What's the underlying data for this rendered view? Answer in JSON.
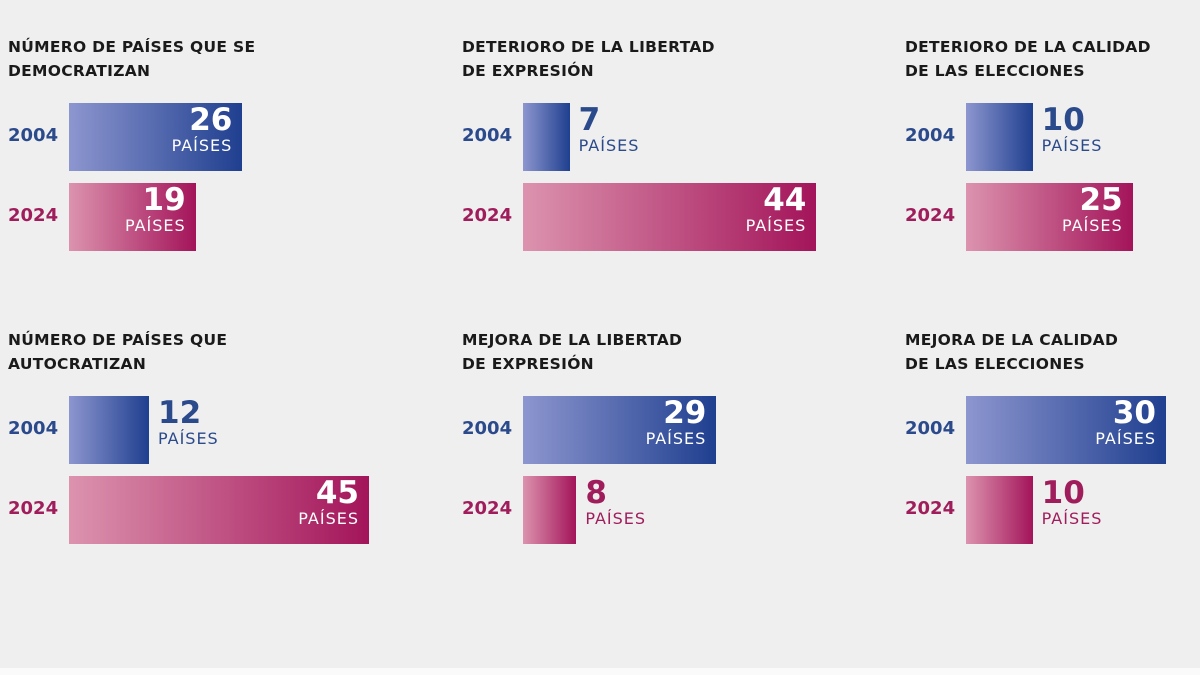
{
  "chart_data": {
    "type": "bar",
    "unit_label": "PAÍSES",
    "colors": {
      "2004": {
        "start": "#8d96cf",
        "end": "#1f3f8f",
        "label": "#2b4a8b"
      },
      "2024": {
        "start": "#dc93ae",
        "end": "#a3145a",
        "label": "#a01d5c"
      },
      "background": "#efefef"
    },
    "panels": [
      {
        "title": "NÚMERO DE PAÍSES QUE SE\nDEMOCRATIZAN",
        "categories": [
          "2004",
          "2024"
        ],
        "values": [
          26,
          19
        ]
      },
      {
        "title": "DETERIORO DE LA LIBERTAD\nDE EXPRESIÓN",
        "categories": [
          "2004",
          "2024"
        ],
        "values": [
          7,
          44
        ]
      },
      {
        "title": "DETERIORO DE LA CALIDAD\nDE LAS ELECCIONES",
        "categories": [
          "2004",
          "2024"
        ],
        "values": [
          10,
          25
        ]
      },
      {
        "title": "NÚMERO DE PAÍSES QUE\nAUTOCRATIZAN",
        "categories": [
          "2004",
          "2024"
        ],
        "values": [
          12,
          45
        ]
      },
      {
        "title": "MEJORA DE LA LIBERTAD\nDE EXPRESIÓN",
        "categories": [
          "2004",
          "2024"
        ],
        "values": [
          29,
          8
        ]
      },
      {
        "title": "MEJORA DE LA CALIDAD\nDE LAS ELECCIONES",
        "categories": [
          "2004",
          "2024"
        ],
        "values": [
          30,
          10
        ]
      }
    ]
  }
}
